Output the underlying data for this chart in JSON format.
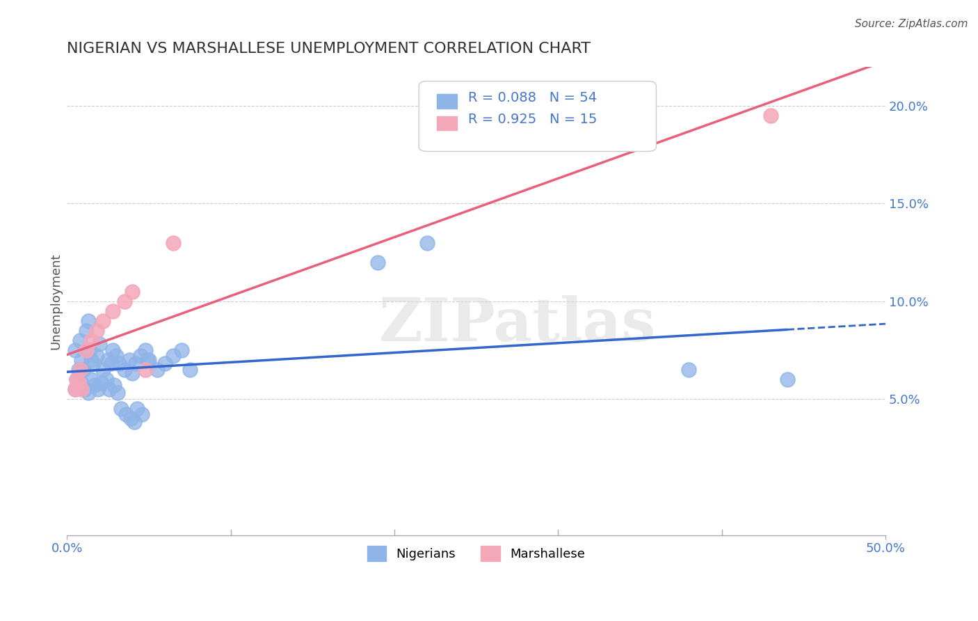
{
  "title": "NIGERIAN VS MARSHALLESE UNEMPLOYMENT CORRELATION CHART",
  "source": "Source: ZipAtlas.com",
  "xlabel": "",
  "ylabel": "Unemployment",
  "xlim": [
    0.0,
    0.5
  ],
  "ylim": [
    -0.02,
    0.22
  ],
  "y_ticks_right": [
    0.05,
    0.1,
    0.15,
    0.2
  ],
  "y_tick_labels_right": [
    "5.0%",
    "10.0%",
    "15.0%",
    "20.0%"
  ],
  "nigerian_color": "#8fb4e8",
  "marshallese_color": "#f4a7b9",
  "nigerian_line_color": "#3366cc",
  "marshallese_line_color": "#e8607a",
  "legend_R_nigerian": "R = 0.088",
  "legend_N_nigerian": "N = 54",
  "legend_R_marshallese": "R = 0.925",
  "legend_N_marshallese": "N = 15",
  "background_color": "#ffffff",
  "grid_color": "#cccccc",
  "title_color": "#333333",
  "axis_label_color": "#555555",
  "tick_label_color": "#4477cc",
  "watermark": "ZIPatlas",
  "nigerian_x": [
    0.005,
    0.007,
    0.008,
    0.009,
    0.01,
    0.012,
    0.013,
    0.014,
    0.015,
    0.016,
    0.018,
    0.02,
    0.022,
    0.025,
    0.027,
    0.028,
    0.03,
    0.032,
    0.035,
    0.038,
    0.04,
    0.042,
    0.045,
    0.048,
    0.05,
    0.055,
    0.06,
    0.065,
    0.07,
    0.075,
    0.005,
    0.006,
    0.009,
    0.011,
    0.013,
    0.015,
    0.017,
    0.019,
    0.021,
    0.024,
    0.026,
    0.029,
    0.031,
    0.033,
    0.036,
    0.039,
    0.041,
    0.043,
    0.046,
    0.049,
    0.19,
    0.22,
    0.38,
    0.44
  ],
  "nigerian_y": [
    0.075,
    0.065,
    0.08,
    0.07,
    0.065,
    0.085,
    0.09,
    0.075,
    0.07,
    0.068,
    0.072,
    0.078,
    0.065,
    0.07,
    0.068,
    0.075,
    0.072,
    0.068,
    0.065,
    0.07,
    0.063,
    0.068,
    0.072,
    0.075,
    0.07,
    0.065,
    0.068,
    0.072,
    0.075,
    0.065,
    0.055,
    0.06,
    0.058,
    0.055,
    0.053,
    0.06,
    0.057,
    0.055,
    0.058,
    0.06,
    0.055,
    0.057,
    0.053,
    0.045,
    0.042,
    0.04,
    0.038,
    0.045,
    0.042,
    0.07,
    0.12,
    0.13,
    0.065,
    0.06
  ],
  "marshallese_x": [
    0.005,
    0.006,
    0.007,
    0.008,
    0.009,
    0.012,
    0.015,
    0.018,
    0.022,
    0.028,
    0.035,
    0.04,
    0.048,
    0.065,
    0.43
  ],
  "marshallese_y": [
    0.055,
    0.06,
    0.058,
    0.065,
    0.055,
    0.075,
    0.08,
    0.085,
    0.09,
    0.095,
    0.1,
    0.105,
    0.065,
    0.13,
    0.195
  ]
}
